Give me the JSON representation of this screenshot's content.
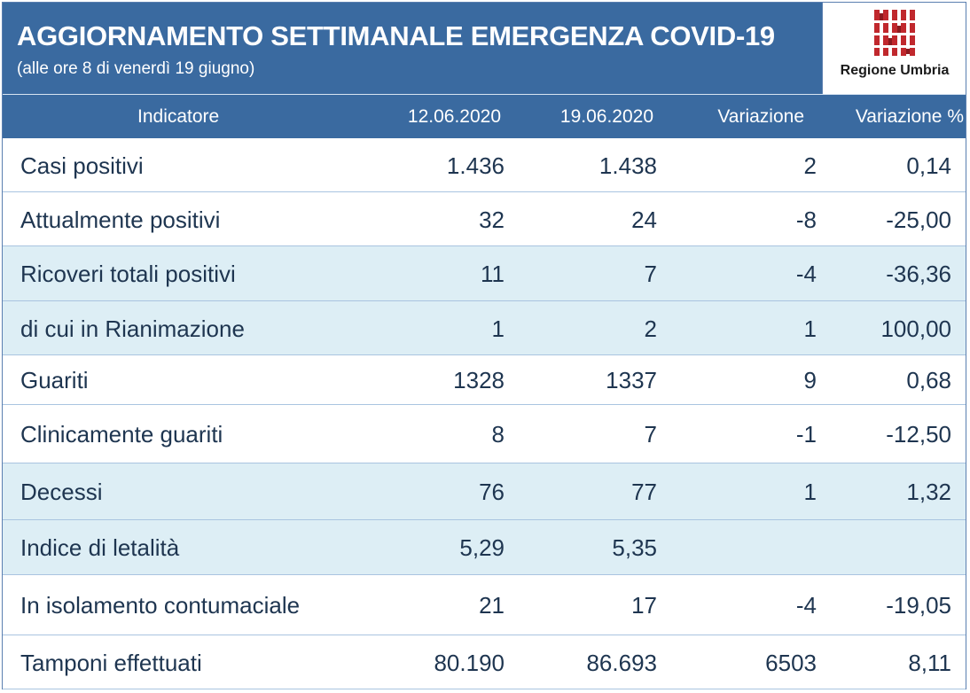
{
  "header": {
    "title": "AGGIORNAMENTO SETTIMANALE EMERGENZA COVID-19",
    "subtitle": "(alle ore 8 di venerdì 19 giugno)",
    "logo_text": "Regione Umbria"
  },
  "colors": {
    "banner": "#3a6aa0",
    "alt_row": "#ddeef5",
    "text": "#1e3550",
    "logo_red": "#c0282d"
  },
  "chart_data": {
    "type": "table",
    "columns": [
      "Indicatore",
      "12.06.2020",
      "19.06.2020",
      "Variazione",
      "Variazione %"
    ],
    "rows": [
      [
        "Casi positivi",
        "1.436",
        "1.438",
        "2",
        "0,14"
      ],
      [
        "Attualmente positivi",
        "32",
        "24",
        "-8",
        "-25,00"
      ],
      [
        "Ricoveri totali positivi",
        "11",
        "7",
        "-4",
        "-36,36"
      ],
      [
        "di cui in Rianimazione",
        "1",
        "2",
        "1",
        "100,00"
      ],
      [
        "Guariti",
        "1328",
        "1337",
        "9",
        "0,68"
      ],
      [
        "Clinicamente guariti",
        "8",
        "7",
        "-1",
        "-12,50"
      ],
      [
        "Decessi",
        "76",
        "77",
        "1",
        "1,32"
      ],
      [
        "Indice di letalità",
        "5,29",
        "5,35",
        "",
        ""
      ],
      [
        "In isolamento contumaciale",
        "21",
        "17",
        "-4",
        "-19,05"
      ],
      [
        "Tamponi effettuati",
        "80.190",
        "86.693",
        "6503",
        "8,11"
      ]
    ]
  }
}
